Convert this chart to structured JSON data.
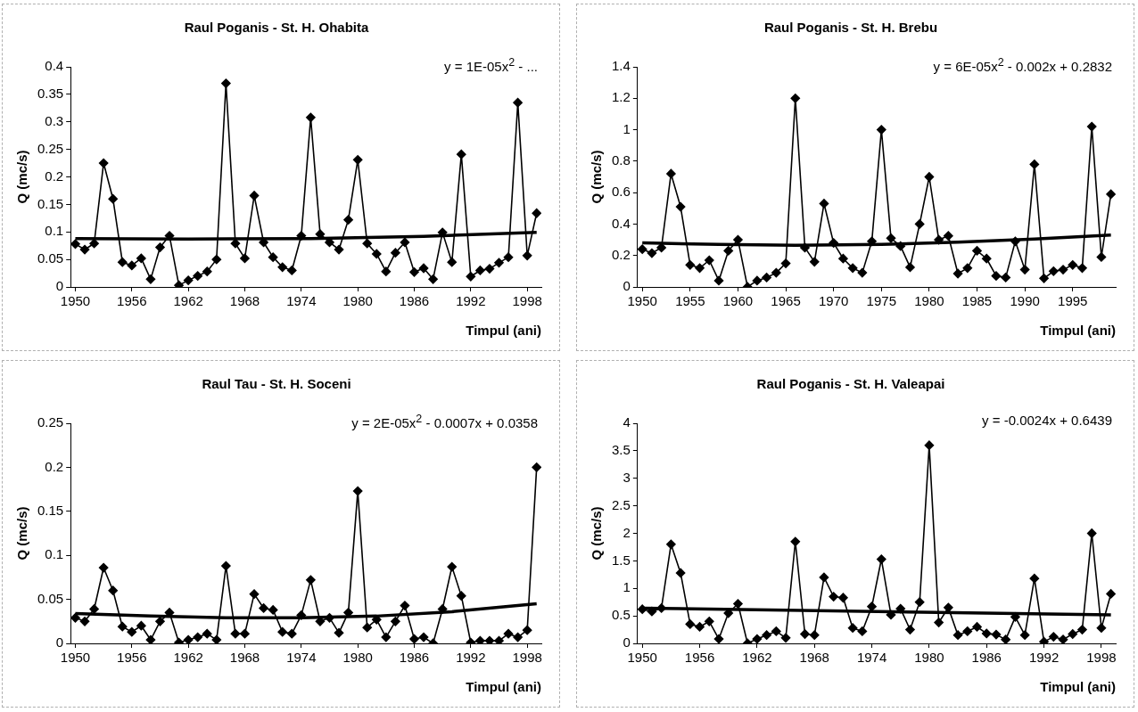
{
  "chart_data": [
    {
      "type": "line",
      "title": "Raul Poganis - St. H. Ohabita",
      "xlabel": "Timpul (ani)",
      "ylabel": "Q (mc/s)",
      "annotations": [
        "y = 1E-05x$^{2}$ - ..."
      ],
      "x": [
        1950,
        1951,
        1952,
        1953,
        1954,
        1955,
        1956,
        1957,
        1958,
        1959,
        1960,
        1961,
        1962,
        1963,
        1964,
        1965,
        1966,
        1967,
        1968,
        1969,
        1970,
        1971,
        1972,
        1973,
        1974,
        1975,
        1976,
        1977,
        1978,
        1979,
        1980,
        1981,
        1982,
        1983,
        1984,
        1985,
        1986,
        1987,
        1988,
        1989,
        1990,
        1991,
        1992,
        1993,
        1994,
        1995,
        1996,
        1997,
        1998,
        1999
      ],
      "series": [
        {
          "color": "#000000",
          "marker": "diamond",
          "values": [
            0.078,
            0.068,
            0.079,
            0.225,
            0.16,
            0.045,
            0.039,
            0.052,
            0.014,
            0.072,
            0.093,
            0.003,
            0.012,
            0.02,
            0.028,
            0.05,
            0.37,
            0.079,
            0.052,
            0.166,
            0.081,
            0.054,
            0.036,
            0.03,
            0.093,
            0.308,
            0.096,
            0.081,
            0.068,
            0.122,
            0.231,
            0.079,
            0.06,
            0.028,
            0.062,
            0.081,
            0.027,
            0.034,
            0.014,
            0.099,
            0.045,
            0.241,
            0.019,
            0.03,
            0.033,
            0.044,
            0.054,
            0.335,
            0.057,
            0.134
          ]
        },
        {
          "color": "#000000",
          "marker": "none",
          "x": [
            1950,
            1962,
            1975,
            1987,
            1999
          ],
          "values": [
            0.088,
            0.087,
            0.088,
            0.092,
            0.099
          ]
        }
      ],
      "xlim": [
        1949.5,
        1999.5
      ],
      "xticks": [
        1950,
        1956,
        1962,
        1968,
        1974,
        1980,
        1986,
        1992,
        1998
      ],
      "ylim": [
        0,
        0.4
      ],
      "yticks": [
        0,
        0.05,
        0.1,
        0.15,
        0.2,
        0.25,
        0.3,
        0.35,
        0.4
      ],
      "grid": false,
      "legend": false
    },
    {
      "type": "line",
      "title": "Raul Poganis - St. H. Brebu",
      "xlabel": "Timpul (ani)",
      "ylabel": "Q (mc/s)",
      "annotations": [
        "y = 6E-05x$^{2}$ - 0.002x + 0.2832"
      ],
      "x": [
        1950,
        1951,
        1952,
        1953,
        1954,
        1955,
        1956,
        1957,
        1958,
        1959,
        1960,
        1961,
        1962,
        1963,
        1964,
        1965,
        1966,
        1967,
        1968,
        1969,
        1970,
        1971,
        1972,
        1973,
        1974,
        1975,
        1976,
        1977,
        1978,
        1979,
        1980,
        1981,
        1982,
        1983,
        1984,
        1985,
        1986,
        1987,
        1988,
        1989,
        1990,
        1991,
        1992,
        1993,
        1994,
        1995,
        1996,
        1997,
        1998,
        1999
      ],
      "series": [
        {
          "color": "#000000",
          "marker": "diamond",
          "values": [
            0.24,
            0.215,
            0.25,
            0.72,
            0.51,
            0.14,
            0.12,
            0.17,
            0.04,
            0.23,
            0.3,
            0.0,
            0.04,
            0.06,
            0.09,
            0.15,
            1.2,
            0.25,
            0.16,
            0.53,
            0.28,
            0.18,
            0.12,
            0.09,
            0.29,
            1.0,
            0.31,
            0.26,
            0.125,
            0.4,
            0.7,
            0.3,
            0.325,
            0.085,
            0.12,
            0.23,
            0.18,
            0.07,
            0.06,
            0.29,
            0.11,
            0.78,
            0.055,
            0.1,
            0.11,
            0.14,
            0.12,
            1.02,
            0.19,
            0.59
          ]
        },
        {
          "color": "#000000",
          "marker": "none",
          "x": [
            1950,
            1958,
            1966,
            1975,
            1983,
            1991,
            1999
          ],
          "values": [
            0.28,
            0.27,
            0.265,
            0.27,
            0.285,
            0.305,
            0.33
          ]
        }
      ],
      "xlim": [
        1949.5,
        1999.5
      ],
      "xticks": [
        1950,
        1955,
        1960,
        1965,
        1970,
        1975,
        1980,
        1985,
        1990,
        1995
      ],
      "ylim": [
        0,
        1.4
      ],
      "yticks": [
        0,
        0.2,
        0.4,
        0.6,
        0.8,
        1,
        1.2,
        1.4
      ],
      "grid": false,
      "legend": false
    },
    {
      "type": "line",
      "title": "Raul Tau - St. H. Soceni",
      "xlabel": "Timpul (ani)",
      "ylabel": "Q (mc/s)",
      "annotations": [
        "y = 2E-05x$^{2}$ - 0.0007x + 0.0358"
      ],
      "x": [
        1950,
        1951,
        1952,
        1953,
        1954,
        1955,
        1956,
        1957,
        1958,
        1959,
        1960,
        1961,
        1962,
        1963,
        1964,
        1965,
        1966,
        1967,
        1968,
        1969,
        1970,
        1971,
        1972,
        1973,
        1974,
        1975,
        1976,
        1977,
        1978,
        1979,
        1980,
        1981,
        1982,
        1983,
        1984,
        1985,
        1986,
        1987,
        1988,
        1989,
        1990,
        1991,
        1992,
        1993,
        1994,
        1995,
        1996,
        1997,
        1998,
        1999
      ],
      "series": [
        {
          "color": "#000000",
          "marker": "diamond",
          "values": [
            0.029,
            0.025,
            0.039,
            0.086,
            0.06,
            0.019,
            0.013,
            0.02,
            0.004,
            0.025,
            0.035,
            0.001,
            0.004,
            0.007,
            0.011,
            0.004,
            0.088,
            0.011,
            0.011,
            0.056,
            0.04,
            0.038,
            0.013,
            0.011,
            0.032,
            0.072,
            0.025,
            0.029,
            0.012,
            0.035,
            0.173,
            0.018,
            0.027,
            0.007,
            0.025,
            0.043,
            0.005,
            0.007,
            0.0,
            0.039,
            0.087,
            0.054,
            0.001,
            0.003,
            0.003,
            0.003,
            0.011,
            0.007,
            0.015,
            0.2
          ]
        },
        {
          "color": "#000000",
          "marker": "none",
          "x": [
            1950,
            1958,
            1966,
            1974,
            1982,
            1990,
            1999
          ],
          "values": [
            0.034,
            0.031,
            0.029,
            0.029,
            0.031,
            0.036,
            0.045
          ]
        }
      ],
      "xlim": [
        1949.5,
        1999.5
      ],
      "xticks": [
        1950,
        1956,
        1962,
        1968,
        1974,
        1980,
        1986,
        1992,
        1998
      ],
      "ylim": [
        0,
        0.25
      ],
      "yticks": [
        0,
        0.05,
        0.1,
        0.15,
        0.2,
        0.25
      ],
      "grid": false,
      "legend": false
    },
    {
      "type": "line",
      "title": "Raul Poganis - St. H. Valeapai",
      "xlabel": "Timpul (ani)",
      "ylabel": "Q (mc/s)",
      "annotations": [
        "y = -0.0024x + 0.6439"
      ],
      "x": [
        1950,
        1951,
        1952,
        1953,
        1954,
        1955,
        1956,
        1957,
        1958,
        1959,
        1960,
        1961,
        1962,
        1963,
        1964,
        1965,
        1966,
        1967,
        1968,
        1969,
        1970,
        1971,
        1972,
        1973,
        1974,
        1975,
        1976,
        1977,
        1978,
        1979,
        1980,
        1981,
        1982,
        1983,
        1984,
        1985,
        1986,
        1987,
        1988,
        1989,
        1990,
        1991,
        1992,
        1993,
        1994,
        1995,
        1996,
        1997,
        1998,
        1999
      ],
      "series": [
        {
          "color": "#000000",
          "marker": "diamond",
          "values": [
            0.62,
            0.58,
            0.64,
            1.8,
            1.28,
            0.35,
            0.3,
            0.4,
            0.08,
            0.55,
            0.72,
            0.0,
            0.08,
            0.15,
            0.22,
            0.1,
            1.85,
            0.17,
            0.15,
            1.2,
            0.85,
            0.83,
            0.28,
            0.22,
            0.67,
            1.53,
            0.52,
            0.63,
            0.25,
            0.75,
            3.6,
            0.38,
            0.65,
            0.15,
            0.22,
            0.3,
            0.18,
            0.16,
            0.07,
            0.48,
            0.15,
            1.18,
            0.03,
            0.12,
            0.07,
            0.17,
            0.25,
            2.0,
            0.28,
            0.9
          ]
        },
        {
          "color": "#000000",
          "marker": "none",
          "x": [
            1950,
            1999
          ],
          "values": [
            0.64,
            0.52
          ]
        }
      ],
      "xlim": [
        1949.5,
        1999.5
      ],
      "xticks": [
        1950,
        1956,
        1962,
        1968,
        1974,
        1980,
        1986,
        1992,
        1998
      ],
      "ylim": [
        0,
        4
      ],
      "yticks": [
        0,
        0.5,
        1,
        1.5,
        2,
        2.5,
        3,
        3.5,
        4
      ],
      "grid": false,
      "legend": false
    }
  ]
}
